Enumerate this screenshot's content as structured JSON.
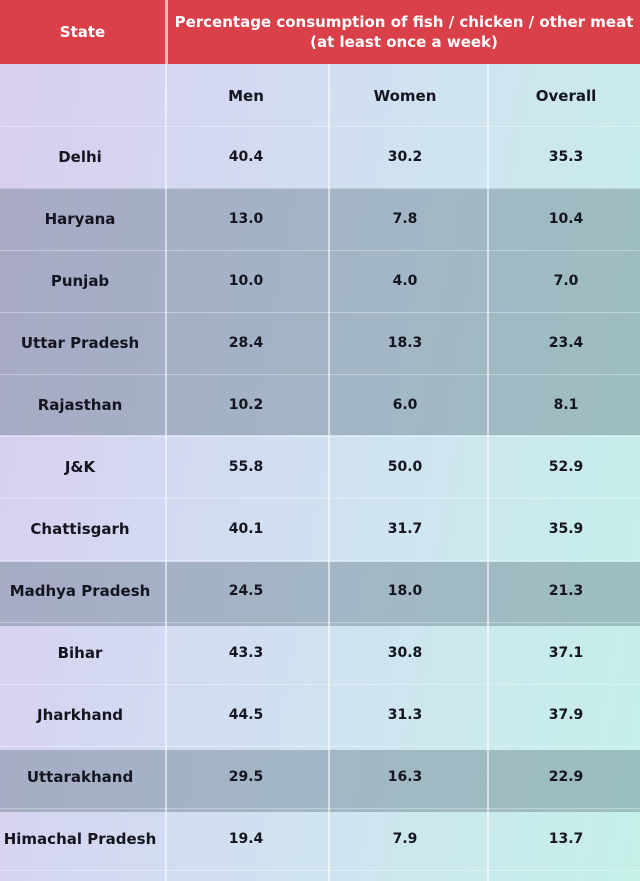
{
  "header": {
    "state_label": "State",
    "title_line1": "Percentage consumption of fish / chicken / other meat",
    "title_line2": "(at least once a week)"
  },
  "chart_data": {
    "type": "table",
    "columns": [
      "Men",
      "Women",
      "Overall"
    ],
    "rows": [
      {
        "state": "Delhi",
        "values": [
          "40.4",
          "30.2",
          "35.3"
        ]
      },
      {
        "state": "Haryana",
        "values": [
          "13.0",
          "7.8",
          "10.4"
        ]
      },
      {
        "state": "Punjab",
        "values": [
          "10.0",
          "4.0",
          "7.0"
        ]
      },
      {
        "state": "Uttar Pradesh",
        "values": [
          "28.4",
          "18.3",
          "23.4"
        ]
      },
      {
        "state": "Rajasthan",
        "values": [
          "10.2",
          "6.0",
          "8.1"
        ]
      },
      {
        "state": "J&K",
        "values": [
          "55.8",
          "50.0",
          "52.9"
        ]
      },
      {
        "state": "Chattisgarh",
        "values": [
          "40.1",
          "31.7",
          "35.9"
        ]
      },
      {
        "state": "Madhya Pradesh",
        "values": [
          "24.5",
          "18.0",
          "21.3"
        ]
      },
      {
        "state": "Bihar",
        "values": [
          "43.3",
          "30.8",
          "37.1"
        ]
      },
      {
        "state": "Jharkhand",
        "values": [
          "44.5",
          "31.3",
          "37.9"
        ]
      },
      {
        "state": "Uttarakhand",
        "values": [
          "29.5",
          "16.3",
          "22.9"
        ]
      },
      {
        "state": "Himachal Pradesh",
        "values": [
          "19.4",
          "7.9",
          "13.7"
        ]
      }
    ]
  },
  "colors": {
    "header": "#d9404a",
    "text": "#151520"
  }
}
